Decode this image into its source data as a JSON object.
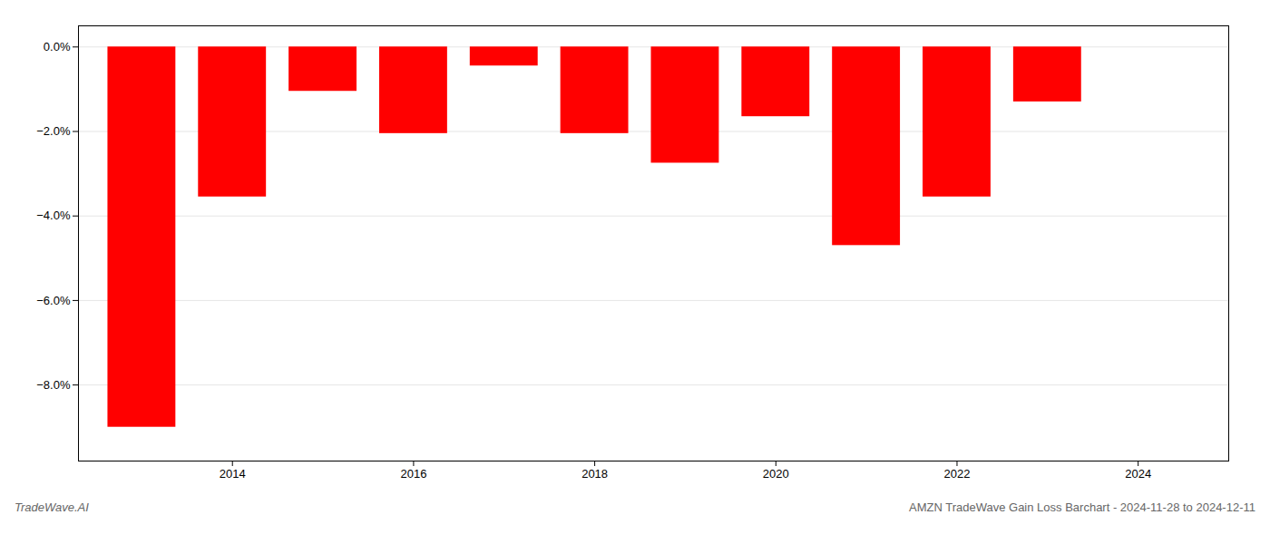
{
  "chart_data": {
    "type": "bar",
    "x": [
      2013,
      2014,
      2015,
      2016,
      2017,
      2018,
      2019,
      2020,
      2021,
      2022,
      2023
    ],
    "values": [
      -9.0,
      -3.55,
      -1.05,
      -2.05,
      -0.45,
      -2.05,
      -2.75,
      -1.65,
      -4.7,
      -3.55,
      -1.3
    ],
    "color": "#ff0000",
    "xlim": [
      2012.3,
      2025.0
    ],
    "xticks": [
      2014,
      2016,
      2018,
      2020,
      2022,
      2024
    ],
    "ylim": [
      -9.8,
      0.5
    ],
    "yticks": [
      {
        "value": 0.0,
        "label": "0.0%"
      },
      {
        "value": -2.0,
        "label": "−2.0%"
      },
      {
        "value": -4.0,
        "label": "−4.0%"
      },
      {
        "value": -6.0,
        "label": "−6.0%"
      },
      {
        "value": -8.0,
        "label": "−8.0%"
      }
    ],
    "grid": true,
    "annotations": [
      "TradeWave.AI",
      "AMZN TradeWave Gain Loss Barchart - 2024-11-28 to 2024-12-11"
    ]
  }
}
